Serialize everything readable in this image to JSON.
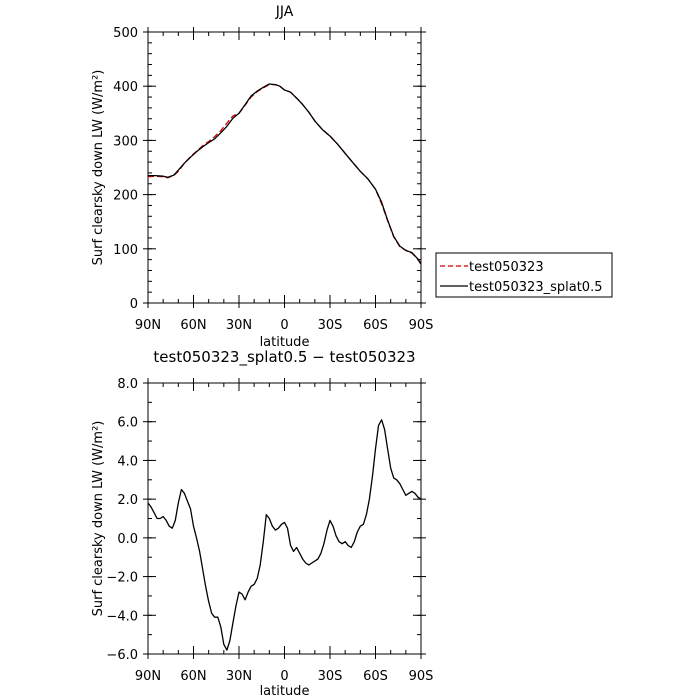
{
  "chart_data": [
    {
      "type": "line",
      "title": "JJA",
      "xlabel": "latitude",
      "ylabel": "Surf clearsky down LW (W/m²)",
      "xlim": [
        90,
        -90
      ],
      "ylim": [
        0,
        500
      ],
      "x_ticks": [
        90,
        60,
        30,
        0,
        -30,
        -60,
        -90
      ],
      "x_tick_labels": [
        "90N",
        "60N",
        "30N",
        "0",
        "30S",
        "60S",
        "90S"
      ],
      "y_ticks": [
        0,
        100,
        200,
        300,
        400,
        500
      ],
      "y_tick_labels": [
        "0",
        "100",
        "200",
        "300",
        "400",
        "500"
      ],
      "legend_position": "outside-right",
      "series": [
        {
          "name": "test050323",
          "color": "#cc0000",
          "dashed": true,
          "x": [
            90,
            85,
            80,
            77,
            73,
            70,
            66,
            62,
            58,
            54,
            50,
            46,
            42,
            38,
            34,
            30,
            26,
            22,
            18,
            14,
            10,
            6,
            3,
            0,
            -4,
            -8,
            -12,
            -16,
            -20,
            -25,
            -30,
            -35,
            -40,
            -45,
            -50,
            -55,
            -60,
            -64,
            -68,
            -72,
            -76,
            -80,
            -84,
            -88,
            -90
          ],
          "y": [
            233,
            234,
            233,
            231,
            235,
            243,
            258,
            270,
            280,
            290,
            298,
            307,
            318,
            332,
            345,
            350,
            365,
            380,
            390,
            397,
            403,
            403,
            400,
            393,
            389,
            378,
            366,
            352,
            336,
            320,
            308,
            293,
            276,
            259,
            243,
            229,
            210,
            183,
            152,
            122,
            104,
            97,
            92,
            80,
            71
          ]
        },
        {
          "name": "test050323_splat0.5",
          "color": "#000000",
          "dashed": false,
          "x": [
            90,
            85,
            80,
            77,
            73,
            70,
            66,
            62,
            58,
            54,
            50,
            46,
            42,
            38,
            34,
            30,
            26,
            22,
            18,
            14,
            10,
            6,
            3,
            0,
            -4,
            -8,
            -12,
            -16,
            -20,
            -25,
            -30,
            -35,
            -40,
            -45,
            -50,
            -55,
            -60,
            -64,
            -68,
            -72,
            -76,
            -80,
            -84,
            -88,
            -90
          ],
          "y": [
            235,
            235,
            234,
            232,
            236,
            245,
            258,
            269,
            279,
            288,
            296,
            303,
            314,
            326,
            341,
            350,
            366,
            382,
            391,
            398,
            404,
            403,
            400,
            393,
            389,
            378,
            366,
            352,
            336,
            320,
            308,
            293,
            276,
            259,
            243,
            229,
            210,
            186,
            153,
            123,
            105,
            97,
            93,
            81,
            72
          ]
        }
      ]
    },
    {
      "type": "line",
      "title": "test050323_splat0.5 − test050323",
      "xlabel": "latitude",
      "ylabel": "Surf clearsky down LW (W/m²)",
      "xlim": [
        90,
        -90
      ],
      "ylim": [
        -6,
        8
      ],
      "x_ticks": [
        90,
        60,
        30,
        0,
        -30,
        -60,
        -90
      ],
      "x_tick_labels": [
        "90N",
        "60N",
        "30N",
        "0",
        "30S",
        "60S",
        "90S"
      ],
      "y_ticks": [
        -6,
        -4,
        -2,
        0,
        2,
        4,
        6,
        8
      ],
      "y_tick_labels": [
        "−6.0",
        "−4.0",
        "−2.0",
        "0.0",
        "2.0",
        "4.0",
        "6.0",
        "8.0"
      ],
      "series": [
        {
          "color": "#000000",
          "dashed": false,
          "x": [
            90,
            88,
            86,
            84,
            82,
            80,
            78,
            76,
            74,
            72,
            70,
            68,
            66,
            64,
            62,
            60,
            58,
            56,
            54,
            52,
            50,
            48,
            46,
            44,
            42,
            40,
            38,
            36,
            34,
            32,
            30,
            28,
            26,
            24,
            22,
            20,
            18,
            16,
            14,
            12,
            10,
            8,
            6,
            4,
            2,
            0,
            -2,
            -4,
            -6,
            -8,
            -10,
            -12,
            -14,
            -16,
            -18,
            -20,
            -22,
            -24,
            -26,
            -28,
            -30,
            -32,
            -34,
            -36,
            -38,
            -40,
            -42,
            -44,
            -46,
            -48,
            -50,
            -52,
            -54,
            -56,
            -58,
            -60,
            -62,
            -64,
            -66,
            -68,
            -70,
            -72,
            -74,
            -76,
            -78,
            -80,
            -82,
            -84,
            -86,
            -88,
            -90
          ],
          "y": [
            1.8,
            1.6,
            1.3,
            1.0,
            1.0,
            1.1,
            0.9,
            0.6,
            0.5,
            0.9,
            1.8,
            2.5,
            2.3,
            1.9,
            1.5,
            0.6,
            0.0,
            -0.7,
            -1.6,
            -2.5,
            -3.3,
            -3.9,
            -4.1,
            -4.1,
            -4.6,
            -5.5,
            -5.8,
            -5.3,
            -4.4,
            -3.5,
            -2.8,
            -2.9,
            -3.2,
            -2.8,
            -2.5,
            -2.4,
            -2.1,
            -1.4,
            -0.2,
            1.2,
            1.0,
            0.6,
            0.4,
            0.5,
            0.7,
            0.8,
            0.5,
            -0.4,
            -0.7,
            -0.5,
            -0.8,
            -1.1,
            -1.3,
            -1.4,
            -1.3,
            -1.2,
            -1.1,
            -0.8,
            -0.3,
            0.4,
            0.9,
            0.6,
            0.1,
            -0.2,
            -0.3,
            -0.2,
            -0.4,
            -0.5,
            -0.2,
            0.3,
            0.6,
            0.7,
            1.2,
            2.0,
            3.2,
            4.6,
            5.8,
            6.1,
            5.6,
            4.6,
            3.6,
            3.1,
            3.0,
            2.8,
            2.5,
            2.2,
            2.3,
            2.4,
            2.3,
            2.1,
            2.0
          ]
        }
      ]
    }
  ]
}
